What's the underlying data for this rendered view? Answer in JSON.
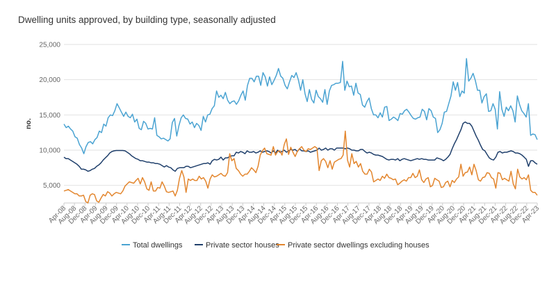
{
  "chart_data": {
    "type": "line",
    "title": "Dwelling units approved, by building type, seasonally adjusted",
    "xlabel": "",
    "ylabel": "no.",
    "ylim": [
      2500,
      25000
    ],
    "yticks": [
      "5,000",
      "10,000",
      "15,000",
      "20,000",
      "25,000"
    ],
    "x_start": "Apr-08",
    "x_end": "Apr-23",
    "xtick_labels": [
      "Apr-08",
      "Aug-08",
      "Dec-08",
      "Apr-09",
      "Aug-09",
      "Dec-09",
      "Apr-10",
      "Aug-10",
      "Dec-10",
      "Apr-11",
      "Aug-11",
      "Dec-11",
      "Apr-12",
      "Aug-12",
      "Dec-12",
      "Apr-13",
      "Aug-13",
      "Dec-13",
      "Apr-14",
      "Aug-14",
      "Dec-14",
      "Apr-15",
      "Aug-15",
      "Dec-15",
      "Apr-16",
      "Aug-16",
      "Dec-16",
      "Apr-17",
      "Aug-17",
      "Dec-17",
      "Apr-18",
      "Aug-18",
      "Dec-18",
      "Apr-19",
      "Aug-19",
      "Dec-19",
      "Apr-20",
      "Aug-20",
      "Dec-20",
      "Apr-21",
      "Aug-21",
      "Dec-21",
      "Apr-22",
      "Aug-22",
      "Dec-22",
      "Apr-23"
    ],
    "grid": true,
    "legend_position": "bottom",
    "series": [
      {
        "name": "Total dwellings",
        "color": "#4aa3d2",
        "values": [
          13700,
          13200,
          13400,
          13000,
          12700,
          11900,
          11700,
          10800,
          10300,
          9500,
          10500,
          11100,
          11200,
          10900,
          11500,
          11800,
          12700,
          12500,
          13700,
          13400,
          14600,
          15000,
          14900,
          15600,
          16600,
          16000,
          15400,
          14800,
          15400,
          14800,
          14600,
          15100,
          14000,
          14400,
          13100,
          12900,
          14100,
          13800,
          13000,
          13100,
          13000,
          14600,
          12100,
          11900,
          11600,
          11700,
          11500,
          11300,
          11600,
          13900,
          14500,
          12000,
          13500,
          14600,
          15000,
          14500,
          14400,
          13700,
          14000,
          13200,
          13800,
          13500,
          12800,
          14800,
          14000,
          15000,
          15100,
          15900,
          16300,
          18400,
          17500,
          17800,
          17300,
          18200,
          17100,
          16600,
          16900,
          17000,
          16500,
          17000,
          17800,
          18400,
          17100,
          19200,
          20200,
          20200,
          19700,
          20500,
          20500,
          19200,
          21000,
          20400,
          19100,
          20400,
          19300,
          19900,
          20600,
          21600,
          20500,
          20200,
          19200,
          18700,
          19700,
          20600,
          20300,
          21000,
          20000,
          18500,
          20000,
          18000,
          16900,
          18600,
          17200,
          16700,
          18500,
          17600,
          17300,
          16800,
          18600,
          16500,
          18400,
          19200,
          19300,
          19500,
          19500,
          19600,
          22600,
          18500,
          19800,
          19000,
          19100,
          17800,
          19500,
          18100,
          17900,
          16400,
          16100,
          16900,
          17400,
          15900,
          15000,
          15000,
          14600,
          15300,
          14700,
          16100,
          16200,
          14200,
          14400,
          14700,
          14500,
          14200,
          15200,
          15100,
          15600,
          15800,
          15400,
          14900,
          14500,
          14400,
          14600,
          14700,
          15800,
          15500,
          14300,
          15900,
          15600,
          14700,
          14500,
          12500,
          12900,
          13800,
          15400,
          15500,
          16600,
          17700,
          19700,
          18500,
          19600,
          17600,
          18400,
          18100,
          23000,
          19800,
          20200,
          20900,
          19900,
          18500,
          18500,
          16700,
          17600,
          18000,
          15500,
          15600,
          16600,
          15800,
          13000,
          18300,
          15800,
          14800,
          16100,
          15600,
          16300,
          15600,
          14000,
          17700,
          16500,
          15600,
          15200,
          14700,
          16600,
          12100,
          12300,
          12200,
          11500
        ]
      },
      {
        "name": "Private sector houses",
        "color": "#1f3f6b",
        "values": [
          9000,
          8800,
          8800,
          8600,
          8400,
          8200,
          8000,
          7700,
          7300,
          7300,
          7200,
          7000,
          7100,
          7300,
          7400,
          7700,
          7900,
          8200,
          8600,
          8900,
          9200,
          9600,
          9800,
          9900,
          9950,
          9950,
          9950,
          9950,
          9900,
          9700,
          9500,
          9200,
          9000,
          8800,
          8700,
          8500,
          8500,
          8400,
          8300,
          8300,
          8200,
          8200,
          8100,
          8100,
          8000,
          7800,
          7600,
          7800,
          7600,
          7500,
          7200,
          7000,
          7400,
          7500,
          7500,
          7500,
          7700,
          7700,
          7500,
          7600,
          7700,
          7800,
          7900,
          8000,
          8100,
          8100,
          8200,
          8000,
          8500,
          8700,
          8600,
          8700,
          9000,
          8600,
          8900,
          8900,
          9100,
          9200,
          9200,
          9700,
          9600,
          9800,
          9700,
          9500,
          9900,
          9700,
          9700,
          9800,
          9600,
          9700,
          9900,
          9700,
          9800,
          9900,
          9800,
          9600,
          9900,
          9600,
          10000,
          9700,
          9800,
          10000,
          9700,
          9900,
          10100,
          10000,
          10100,
          9800,
          10200,
          9900,
          9900,
          9800,
          9900,
          9700,
          9800,
          9900,
          10000,
          10300,
          10000,
          10100,
          10300,
          10000,
          10200,
          10200,
          10000,
          10300,
          10300,
          10300,
          10300,
          10200,
          10300,
          10200,
          10000,
          10000,
          9900,
          9900,
          10100,
          10100,
          9800,
          9600,
          9700,
          9600,
          9400,
          9300,
          9300,
          9200,
          9100,
          8900,
          8700,
          8600,
          8700,
          8700,
          8600,
          8800,
          8500,
          8700,
          8800,
          8700,
          8600,
          8500,
          8600,
          8700,
          8800,
          8700,
          8800,
          8700,
          8700,
          8600,
          8600,
          8600,
          8600,
          8900,
          8800,
          8700,
          8500,
          8700,
          9000,
          9400,
          10200,
          10900,
          11500,
          12200,
          12900,
          13800,
          14000,
          13800,
          13800,
          13400,
          12700,
          12000,
          11400,
          10700,
          10100,
          9900,
          9400,
          8900,
          8700,
          8600,
          9000,
          9700,
          9800,
          9600,
          9700,
          9700,
          9800,
          9900,
          9800,
          9600,
          9600,
          9500,
          9300,
          9000,
          8700,
          7700,
          8500,
          8500,
          8200,
          8000
        ]
      },
      {
        "name": "Private sector dwellings excluding houses",
        "color": "#e3862e",
        "values": [
          4200,
          4300,
          4400,
          4200,
          4000,
          3800,
          3800,
          3500,
          3500,
          3600,
          2700,
          2500,
          3600,
          3800,
          3700,
          2800,
          2600,
          3200,
          3700,
          3500,
          4100,
          3900,
          3500,
          3800,
          4000,
          3900,
          3800,
          4200,
          4900,
          5200,
          5500,
          5400,
          5300,
          5700,
          6000,
          5200,
          6100,
          5500,
          4500,
          4300,
          5500,
          4200,
          4200,
          4700,
          4600,
          5500,
          4900,
          4100,
          4000,
          4100,
          4200,
          3500,
          4300,
          6000,
          7100,
          6200,
          4000,
          5900,
          5700,
          5900,
          5700,
          5700,
          6300,
          5900,
          6100,
          5600,
          4600,
          5900,
          6500,
          6200,
          6300,
          6500,
          6700,
          6400,
          6300,
          6800,
          9500,
          8500,
          8800,
          7400,
          7100,
          6600,
          6300,
          6600,
          6600,
          7000,
          7500,
          7200,
          6800,
          7700,
          9300,
          9900,
          10300,
          9500,
          9400,
          9300,
          10500,
          9300,
          9800,
          9900,
          9300,
          10800,
          11600,
          9400,
          10400,
          9700,
          9100,
          9800,
          10200,
          10500,
          10000,
          9800,
          10200,
          10100,
          10300,
          10500,
          10300,
          7100,
          8500,
          8800,
          8400,
          7500,
          8500,
          7300,
          8300,
          8500,
          8700,
          8800,
          9300,
          12700,
          8600,
          7600,
          9500,
          8100,
          8400,
          7600,
          8100,
          7000,
          6600,
          6600,
          7300,
          6900,
          5500,
          5700,
          5900,
          5700,
          6300,
          6000,
          6600,
          6100,
          6000,
          5800,
          5900,
          5100,
          5300,
          5600,
          5800,
          5600,
          6100,
          6100,
          6700,
          6100,
          6300,
          7200,
          5800,
          5400,
          5900,
          6100,
          4800,
          5000,
          6000,
          5800,
          5600,
          4700,
          4800,
          5400,
          5600,
          4800,
          5700,
          5400,
          5900,
          6200,
          8000,
          6300,
          6800,
          6900,
          7600,
          6500,
          8000,
          7100,
          5800,
          5600,
          6100,
          6200,
          6800,
          6700,
          6100,
          5900,
          4600,
          6800,
          6700,
          5800,
          6000,
          5800,
          5600,
          7000,
          5200,
          4500,
          7300,
          6200,
          5900,
          6100,
          5800,
          6500,
          4300,
          4000,
          4000,
          3600
        ]
      }
    ]
  }
}
